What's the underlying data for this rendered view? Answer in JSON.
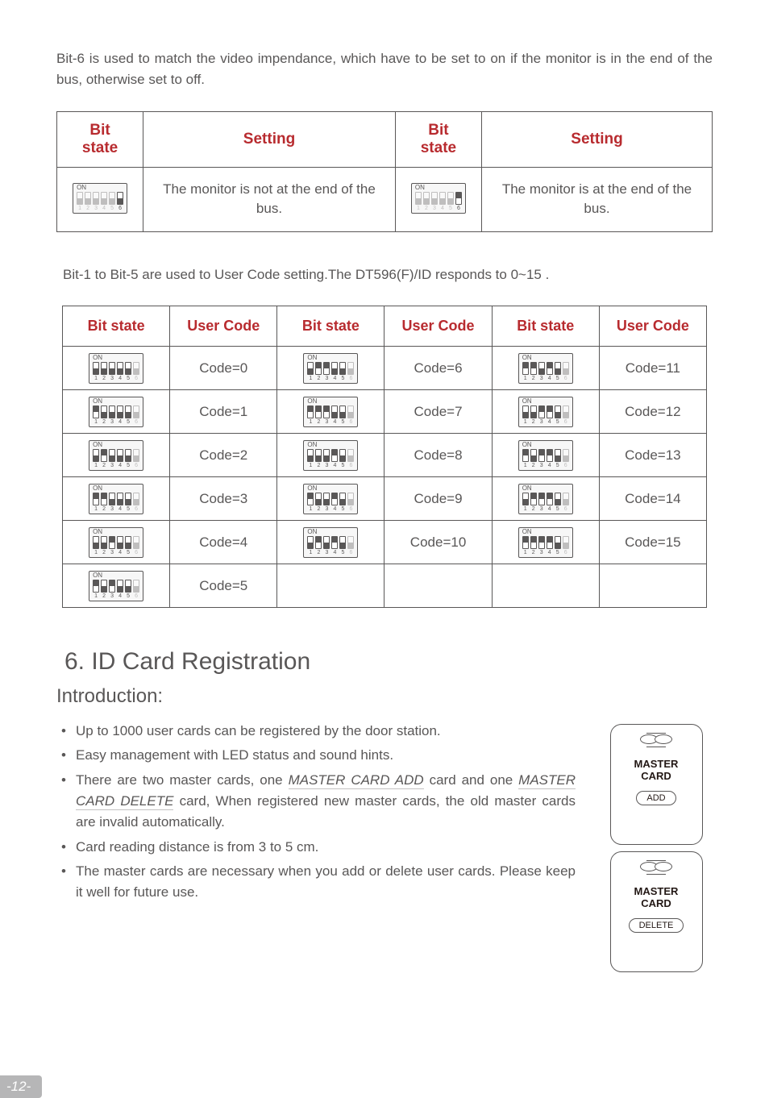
{
  "colors": {
    "text": "#595757",
    "accent_red": "#b82b2f",
    "page_grey": "#b6b6b7",
    "border": "#595757",
    "underline": "#c3c2c2",
    "background": "#ffffff"
  },
  "intro_paragraph": "Bit-6 is used to match the video impendance, which have to be set to on if the monitor is in the end of the bus, otherwise set to off.",
  "table1": {
    "headers": {
      "bitstate": "Bit state",
      "setting": "Setting"
    },
    "rows": [
      {
        "dip": {
          "on": [],
          "active": [
            6
          ]
        },
        "setting": "The monitor is not at the end of the bus."
      },
      {
        "dip": {
          "on": [
            6
          ],
          "active": [
            6
          ]
        },
        "setting": "The monitor is at the end of the bus."
      }
    ]
  },
  "mid_paragraph": "Bit-1 to Bit-5 are used to User Code setting.The DT596(F)/ID responds to 0~15 .",
  "table2": {
    "headers": {
      "bitstate": "Bit state",
      "usercode": "User Code"
    },
    "rows": [
      {
        "c1_dip": {
          "on": [],
          "active": [
            1,
            2,
            3,
            4,
            5
          ]
        },
        "c1_code": "Code=0",
        "c2_dip": {
          "on": [
            2,
            3
          ],
          "active": [
            1,
            2,
            3,
            4,
            5
          ]
        },
        "c2_code": "Code=6",
        "c3_dip": {
          "on": [
            1,
            2,
            4
          ],
          "active": [
            1,
            2,
            3,
            4,
            5
          ]
        },
        "c3_code": "Code=11"
      },
      {
        "c1_dip": {
          "on": [
            1
          ],
          "active": [
            1,
            2,
            3,
            4,
            5
          ]
        },
        "c1_code": "Code=1",
        "c2_dip": {
          "on": [
            1,
            2,
            3
          ],
          "active": [
            1,
            2,
            3,
            4,
            5
          ]
        },
        "c2_code": "Code=7",
        "c3_dip": {
          "on": [
            3,
            4
          ],
          "active": [
            1,
            2,
            3,
            4,
            5
          ]
        },
        "c3_code": "Code=12"
      },
      {
        "c1_dip": {
          "on": [
            2
          ],
          "active": [
            1,
            2,
            3,
            4,
            5
          ]
        },
        "c1_code": "Code=2",
        "c2_dip": {
          "on": [
            4
          ],
          "active": [
            1,
            2,
            3,
            4,
            5
          ]
        },
        "c2_code": "Code=8",
        "c3_dip": {
          "on": [
            1,
            3,
            4
          ],
          "active": [
            1,
            2,
            3,
            4,
            5
          ]
        },
        "c3_code": "Code=13"
      },
      {
        "c1_dip": {
          "on": [
            1,
            2
          ],
          "active": [
            1,
            2,
            3,
            4,
            5
          ]
        },
        "c1_code": "Code=3",
        "c2_dip": {
          "on": [
            1,
            4
          ],
          "active": [
            1,
            2,
            3,
            4,
            5
          ]
        },
        "c2_code": "Code=9",
        "c3_dip": {
          "on": [
            2,
            3,
            4
          ],
          "active": [
            1,
            2,
            3,
            4,
            5
          ]
        },
        "c3_code": "Code=14"
      },
      {
        "c1_dip": {
          "on": [
            3
          ],
          "active": [
            1,
            2,
            3,
            4,
            5
          ]
        },
        "c1_code": "Code=4",
        "c2_dip": {
          "on": [
            2,
            4
          ],
          "active": [
            1,
            2,
            3,
            4,
            5
          ]
        },
        "c2_code": "Code=10",
        "c3_dip": {
          "on": [
            1,
            2,
            3,
            4
          ],
          "active": [
            1,
            2,
            3,
            4,
            5
          ]
        },
        "c3_code": "Code=15"
      },
      {
        "c1_dip": {
          "on": [
            1,
            3
          ],
          "active": [
            1,
            2,
            3,
            4,
            5
          ]
        },
        "c1_code": "Code=5",
        "c2_dip": null,
        "c2_code": "",
        "c3_dip": null,
        "c3_code": ""
      }
    ]
  },
  "section_title": "6. ID Card Registration",
  "intro_subtitle": "Introduction:",
  "bullets": [
    {
      "pre": "Up to 1000 user cards can be registered by the door station."
    },
    {
      "pre": "Easy management with LED status and sound hints."
    },
    {
      "pre": "There are two master cards, one ",
      "link1": "MASTER CARD ADD",
      "mid1": " card and one ",
      "link2": "MASTER CARD DELETE",
      "post": " card, When registered new master cards, the old master cards are invalid automatically."
    },
    {
      "pre": "Card reading distance is from 3 to 5 cm."
    },
    {
      "pre": "The master cards are necessary when you add or delete user cards. Please keep it well for future use."
    }
  ],
  "master_cards": {
    "add": {
      "title": "MASTER CARD",
      "btn": "ADD"
    },
    "delete": {
      "title": "MASTER CARD",
      "btn": "DELETE"
    }
  },
  "page_number": "-12-"
}
